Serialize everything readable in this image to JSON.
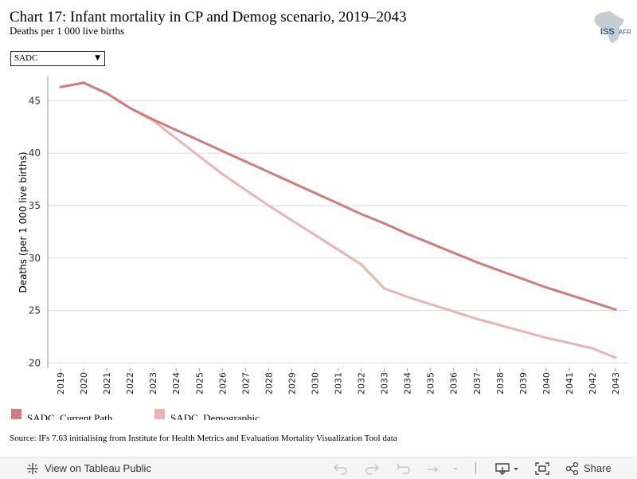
{
  "header": {
    "title": "Chart 17: Infant mortality in CP and Demog scenario, 2019–2043",
    "subtitle": "Deaths per 1 000 live births",
    "logo_text_iss": "ISS",
    "logo_text_af": "AFRICA"
  },
  "filter": {
    "selected": "SADC"
  },
  "colors": {
    "current_path": "#d17b7b",
    "demographic": "#e8b4b4",
    "grid": "#d9d9d9"
  },
  "chart_data": {
    "type": "line",
    "xlabel": "",
    "ylabel": "Deaths (per 1 000 live births)",
    "ylim": [
      19.5,
      47.3
    ],
    "yticks": [
      20,
      25,
      30,
      35,
      40,
      45
    ],
    "grid": true,
    "legend_position": "bottom",
    "x": [
      "2019",
      "2020",
      "2021",
      "2022",
      "2023",
      "2024",
      "2025",
      "2026",
      "2027",
      "2028",
      "2029",
      "2030",
      "2031",
      "2032",
      "2033",
      "2034",
      "2035",
      "2036",
      "2037",
      "2038",
      "2039",
      "2040",
      "2041",
      "2042",
      "2043"
    ],
    "series": [
      {
        "name": "SADC, Current Path",
        "color": "#d17b7b",
        "values": [
          46.3,
          46.7,
          45.7,
          44.3,
          43.2,
          42.2,
          41.2,
          40.2,
          39.2,
          38.2,
          37.2,
          36.2,
          35.2,
          34.2,
          33.3,
          32.3,
          31.4,
          30.5,
          29.6,
          28.8,
          28.0,
          27.2,
          26.5,
          25.8,
          25.1
        ]
      },
      {
        "name": "SADC, Demographic",
        "color": "#e8b4b4",
        "values": [
          46.3,
          46.7,
          45.7,
          44.3,
          43.1,
          41.4,
          39.7,
          38.0,
          36.5,
          35.0,
          33.6,
          32.2,
          30.8,
          29.4,
          27.1,
          26.3,
          25.6,
          24.9,
          24.2,
          23.6,
          23.0,
          22.4,
          21.9,
          21.4,
          20.5
        ]
      }
    ]
  },
  "source": "Source: IFs 7.63 initialising from Institute for Health Metrics and Evaluation Mortality Visualization Tool data",
  "footer": {
    "view_label": "View on Tableau Public",
    "share_label": "Share"
  }
}
